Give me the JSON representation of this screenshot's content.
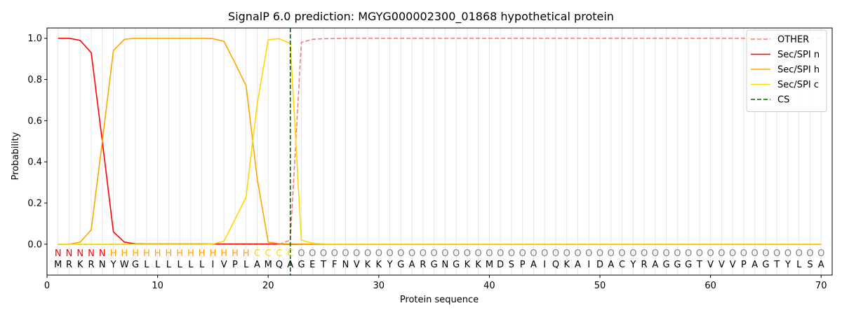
{
  "chart_data": {
    "type": "line",
    "title": "SignalP 6.0 prediction: MGYG000002300_01868 hypothetical protein",
    "xlabel": "Protein sequence",
    "ylabel": "Probability",
    "xlim": [
      0,
      71
    ],
    "ylim": [
      -0.15,
      1.05
    ],
    "xticks": [
      0,
      10,
      20,
      30,
      40,
      50,
      60,
      70
    ],
    "yticks": [
      0.0,
      0.2,
      0.4,
      0.6,
      0.8,
      1.0
    ],
    "grid": "vertical lines at each residue",
    "legend_position": "top-right",
    "sequence": [
      "M",
      "R",
      "K",
      "R",
      "N",
      "Y",
      "W",
      "G",
      "L",
      "L",
      "L",
      "L",
      "L",
      "L",
      "I",
      "V",
      "P",
      "L",
      "A",
      "M",
      "Q",
      "A",
      "G",
      "E",
      "T",
      "F",
      "N",
      "V",
      "K",
      "K",
      "Y",
      "G",
      "A",
      "R",
      "G",
      "N",
      "G",
      "K",
      "K",
      "M",
      "D",
      "S",
      "P",
      "A",
      "I",
      "Q",
      "K",
      "A",
      "I",
      "D",
      "A",
      "C",
      "Y",
      "R",
      "A",
      "G",
      "G",
      "G",
      "T",
      "V",
      "V",
      "V",
      "P",
      "A",
      "G",
      "T",
      "Y",
      "L",
      "S",
      "A"
    ],
    "region_labels": [
      "N",
      "N",
      "N",
      "N",
      "N",
      "H",
      "H",
      "H",
      "H",
      "H",
      "H",
      "H",
      "H",
      "H",
      "H",
      "H",
      "H",
      "H",
      "C",
      "C",
      "C",
      "C",
      "O",
      "O",
      "O",
      "O",
      "O",
      "O",
      "O",
      "O",
      "O",
      "O",
      "O",
      "O",
      "O",
      "O",
      "O",
      "O",
      "O",
      "O",
      "O",
      "O",
      "O",
      "O",
      "O",
      "O",
      "O",
      "O",
      "O",
      "O",
      "O",
      "O",
      "O",
      "O",
      "O",
      "O",
      "O",
      "O",
      "O",
      "O",
      "O",
      "O",
      "O",
      "O",
      "O",
      "O",
      "O",
      "O",
      "O",
      "O"
    ],
    "region_colors": {
      "N": "#ff0000",
      "H": "#ffa500",
      "C": "#ffd700",
      "O": "#808080"
    },
    "series": [
      {
        "name": "OTHER",
        "color": "#f08080",
        "dash": "dashed",
        "values": [
          0,
          0,
          0,
          0,
          0,
          0,
          0,
          0,
          0,
          0,
          0,
          0,
          0,
          0,
          0,
          0,
          0,
          0,
          0,
          0,
          0,
          0.02,
          0.98,
          0.995,
          0.998,
          0.999,
          1,
          1,
          1,
          1,
          1,
          1,
          1,
          1,
          1,
          1,
          1,
          1,
          1,
          1,
          1,
          1,
          1,
          1,
          1,
          1,
          1,
          1,
          1,
          1,
          1,
          1,
          1,
          1,
          1,
          1,
          1,
          1,
          1,
          1,
          1,
          1,
          1,
          1,
          1,
          1,
          1,
          1,
          1,
          1
        ]
      },
      {
        "name": "Sec/SPI n",
        "color": "#ff0000",
        "dash": "solid",
        "values": [
          1.0,
          1.0,
          0.99,
          0.93,
          0.5,
          0.06,
          0.01,
          0.002,
          0.001,
          0.001,
          0.001,
          0.001,
          0.001,
          0.001,
          0.001,
          0.001,
          0.001,
          0.001,
          0.001,
          0.001,
          0.001,
          0,
          0,
          0,
          0,
          0,
          0,
          0,
          0,
          0,
          0,
          0,
          0,
          0,
          0,
          0,
          0,
          0,
          0,
          0,
          0,
          0,
          0,
          0,
          0,
          0,
          0,
          0,
          0,
          0,
          0,
          0,
          0,
          0,
          0,
          0,
          0,
          0,
          0,
          0,
          0,
          0,
          0,
          0,
          0,
          0,
          0,
          0,
          0,
          0
        ]
      },
      {
        "name": "Sec/SPI h",
        "color": "#ffa500",
        "dash": "solid",
        "values": [
          0,
          0,
          0.01,
          0.07,
          0.5,
          0.94,
          0.995,
          1.0,
          1.0,
          1.0,
          1.0,
          1.0,
          1.0,
          1.0,
          0.998,
          0.985,
          0.88,
          0.77,
          0.32,
          0.01,
          0.003,
          0.002,
          0.001,
          0,
          0,
          0,
          0,
          0,
          0,
          0,
          0,
          0,
          0,
          0,
          0,
          0,
          0,
          0,
          0,
          0,
          0,
          0,
          0,
          0,
          0,
          0,
          0,
          0,
          0,
          0,
          0,
          0,
          0,
          0,
          0,
          0,
          0,
          0,
          0,
          0,
          0,
          0,
          0,
          0,
          0,
          0,
          0,
          0,
          0,
          0
        ]
      },
      {
        "name": "Sec/SPI c",
        "color": "#ffd700",
        "dash": "solid",
        "values": [
          0,
          0,
          0,
          0,
          0,
          0,
          0,
          0,
          0,
          0,
          0,
          0,
          0,
          0,
          0.001,
          0.015,
          0.12,
          0.23,
          0.68,
          0.993,
          0.998,
          0.975,
          0.02,
          0.005,
          0.001,
          0,
          0,
          0,
          0,
          0,
          0,
          0,
          0,
          0,
          0,
          0,
          0,
          0,
          0,
          0,
          0,
          0,
          0,
          0,
          0,
          0,
          0,
          0,
          0,
          0,
          0,
          0,
          0,
          0,
          0,
          0,
          0,
          0,
          0,
          0,
          0,
          0,
          0,
          0,
          0,
          0,
          0,
          0,
          0,
          0
        ]
      },
      {
        "name": "CS",
        "color": "#006400",
        "dash": "dashed",
        "position": 22
      }
    ]
  }
}
